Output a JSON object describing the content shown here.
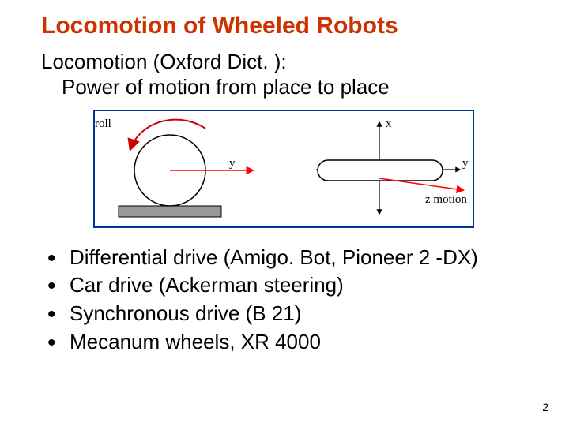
{
  "colors": {
    "title": "#cc3300",
    "text": "#000000",
    "figure_border": "#003399",
    "roll_arrow": "#cc0000",
    "y_arrow": "#ff0000",
    "zmotion_arrow": "#ff0000",
    "axis": "#000000",
    "wheel_stroke": "#000000",
    "wheel_fill": "#ffffff",
    "ground_fill": "#999999",
    "ground_stroke": "#000000",
    "body_stroke": "#000000",
    "body_fill": "#ffffff",
    "label": "#000000"
  },
  "dimensions": {
    "figure_width": 478,
    "figure_height": 146
  },
  "title": "Locomotion of Wheeled Robots",
  "definition": {
    "line1": "Locomotion (Oxford Dict. ):",
    "line2": "Power of motion from place to place"
  },
  "figure": {
    "left": {
      "roll_label": "roll",
      "y_label": "y"
    },
    "right": {
      "x_label": "x",
      "y_label": "y",
      "z_label": "z motion"
    }
  },
  "bullets": [
    "Differential drive (Amigo. Bot, Pioneer 2 -DX)",
    "Car drive (Ackerman steering)",
    "Synchronous drive (B 21)",
    "Mecanum wheels, XR 4000"
  ],
  "page_number": "2"
}
